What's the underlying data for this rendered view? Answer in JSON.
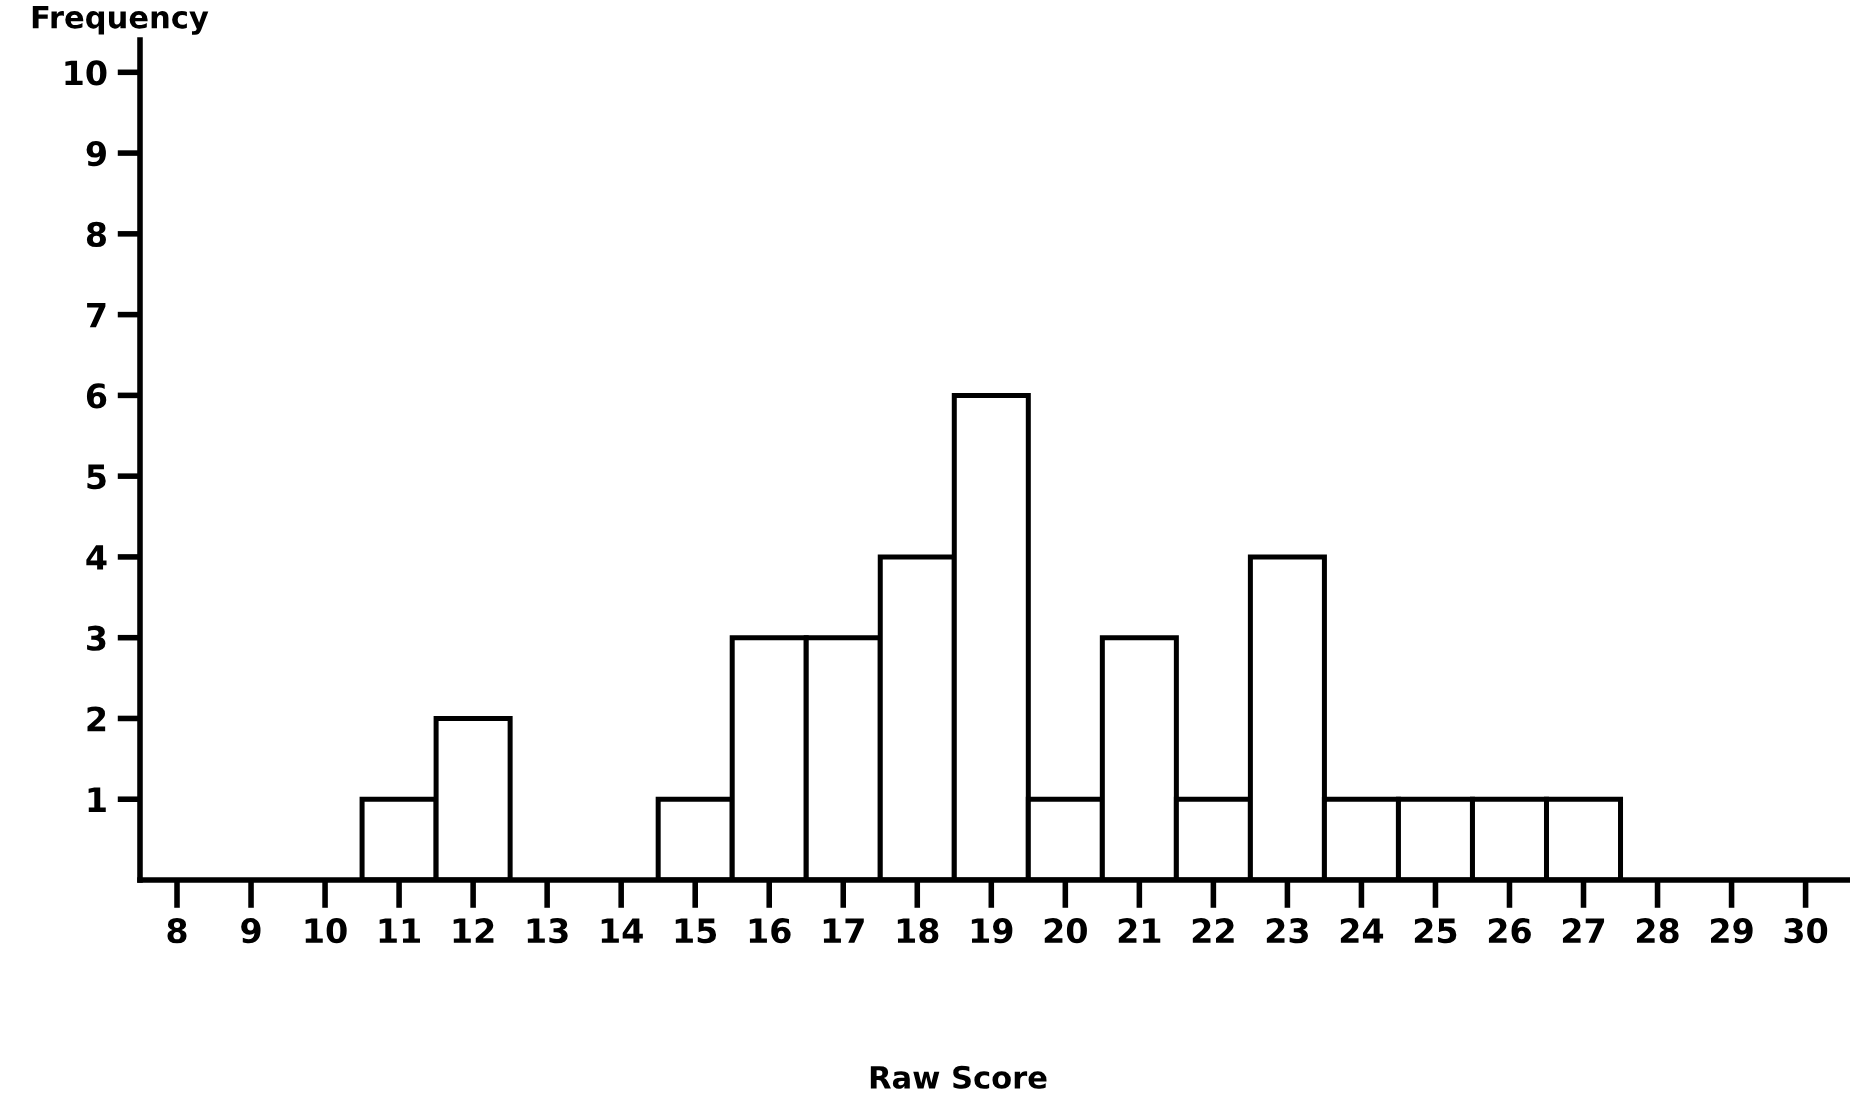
{
  "chart_data": {
    "type": "histogram",
    "xlabel": "Raw Score",
    "ylabel": "Frequency",
    "bins": [
      7.5,
      8.5,
      9.5,
      10.5,
      11.5,
      12.5,
      13.5,
      14.5,
      15.5,
      16.5,
      17.5,
      18.5,
      19.5,
      20.5,
      21.5,
      22.5,
      23.5,
      24.5,
      25.5,
      26.5,
      27.5,
      28.5,
      29.5,
      30.5
    ],
    "values": [
      0,
      0,
      0,
      1,
      2,
      0,
      0,
      1,
      3,
      3,
      4,
      6,
      1,
      3,
      1,
      4,
      1,
      1,
      1,
      1,
      0,
      0,
      0
    ],
    "color": "#ffffff",
    "xlim": [
      7.5,
      30.6
    ],
    "xticks": [
      8,
      9,
      10,
      11,
      12,
      13,
      14,
      15,
      16,
      17,
      18,
      19,
      20,
      21,
      22,
      23,
      24,
      25,
      26,
      27,
      28,
      29,
      30
    ],
    "ylim": [
      0,
      10.4
    ],
    "yticks": [
      1,
      2,
      3,
      4,
      5,
      6,
      7,
      8,
      9,
      10
    ],
    "grid": false
  }
}
